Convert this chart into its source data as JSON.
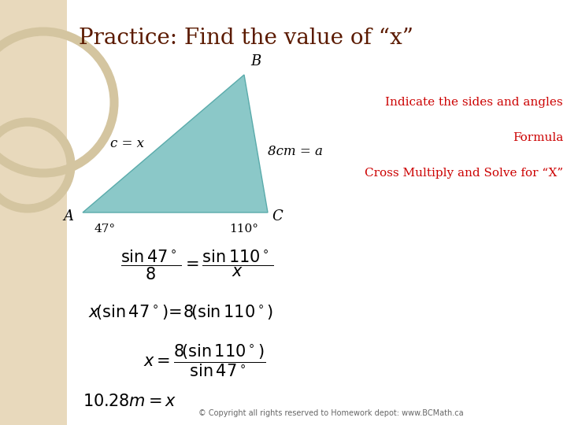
{
  "title": "Practice: Find the value of “x”",
  "title_color": "#5B1A00",
  "title_fontsize": 20,
  "bg_color": "#FFFFFF",
  "left_panel_color": "#E8D9BC",
  "circle_color": "#D4C5A0",
  "triangle_fill": "#8BC8C8",
  "label_A": "A",
  "label_B": "B",
  "label_C": "C",
  "label_c": "c = x",
  "label_a": "8cm = a",
  "label_47": "47°",
  "label_110": "110°",
  "right_text1": "Indicate the sides and angles",
  "right_text2": "Formula",
  "right_text3": "Cross Multiply and Solve for “X”",
  "right_text_color": "#CC0000",
  "formula_color": "#000000",
  "copyright": "© Copyright all rights reserved to Homework depot: www.BCMath.ca",
  "copyright_color": "#666666"
}
